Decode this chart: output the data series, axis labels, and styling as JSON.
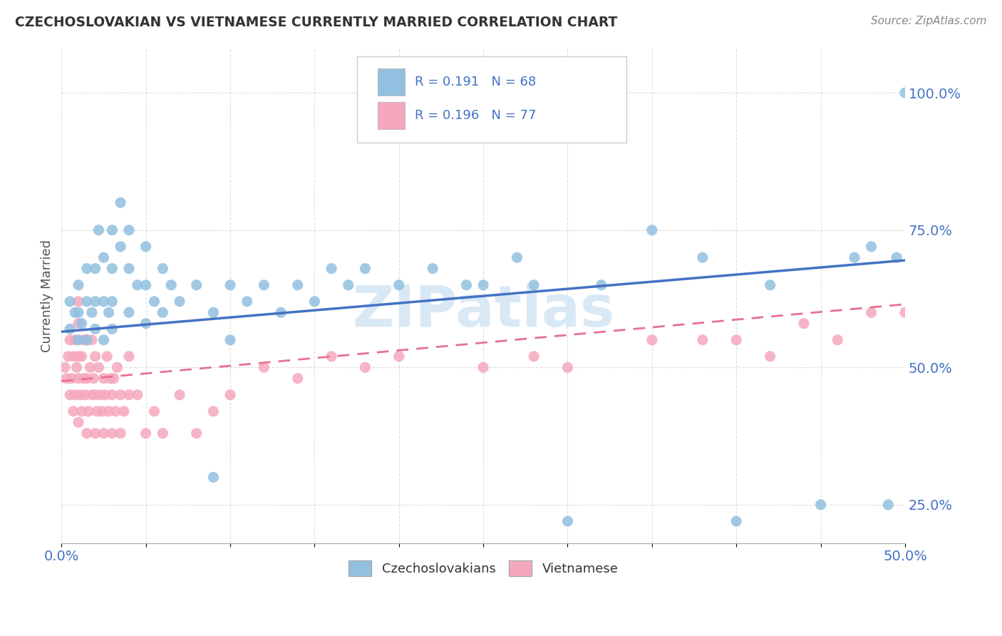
{
  "title": "CZECHOSLOVAKIAN VS VIETNAMESE CURRENTLY MARRIED CORRELATION CHART",
  "source": "Source: ZipAtlas.com",
  "ylabel": "Currently Married",
  "xlim": [
    0.0,
    0.5
  ],
  "ylim": [
    0.18,
    1.08
  ],
  "R_czech": 0.191,
  "N_czech": 68,
  "R_viet": 0.196,
  "N_viet": 77,
  "blue_color": "#92C0E0",
  "pink_color": "#F5A8BC",
  "blue_line": "#4472C4",
  "pink_line": "#E87090",
  "legend_text_color": "#4472C4",
  "watermark": "ZIPatlas",
  "watermark_color": "#D8E8F5",
  "grid_color": "#DDDDDD",
  "czech_x": [
    0.005,
    0.005,
    0.008,
    0.01,
    0.01,
    0.01,
    0.012,
    0.015,
    0.015,
    0.015,
    0.018,
    0.02,
    0.02,
    0.02,
    0.022,
    0.025,
    0.025,
    0.025,
    0.028,
    0.03,
    0.03,
    0.03,
    0.03,
    0.035,
    0.035,
    0.04,
    0.04,
    0.04,
    0.045,
    0.05,
    0.05,
    0.05,
    0.055,
    0.06,
    0.06,
    0.065,
    0.07,
    0.08,
    0.09,
    0.09,
    0.1,
    0.1,
    0.11,
    0.12,
    0.13,
    0.14,
    0.15,
    0.16,
    0.17,
    0.18,
    0.2,
    0.22,
    0.24,
    0.25,
    0.27,
    0.28,
    0.3,
    0.32,
    0.35,
    0.38,
    0.4,
    0.42,
    0.45,
    0.47,
    0.48,
    0.49,
    0.495,
    0.5
  ],
  "czech_y": [
    0.57,
    0.62,
    0.6,
    0.55,
    0.6,
    0.65,
    0.58,
    0.55,
    0.62,
    0.68,
    0.6,
    0.57,
    0.62,
    0.68,
    0.75,
    0.55,
    0.62,
    0.7,
    0.6,
    0.57,
    0.62,
    0.68,
    0.75,
    0.72,
    0.8,
    0.6,
    0.68,
    0.75,
    0.65,
    0.58,
    0.65,
    0.72,
    0.62,
    0.6,
    0.68,
    0.65,
    0.62,
    0.65,
    0.3,
    0.6,
    0.55,
    0.65,
    0.62,
    0.65,
    0.6,
    0.65,
    0.62,
    0.68,
    0.65,
    0.68,
    0.65,
    0.68,
    0.65,
    0.65,
    0.7,
    0.65,
    0.22,
    0.65,
    0.75,
    0.7,
    0.22,
    0.65,
    0.25,
    0.7,
    0.72,
    0.25,
    0.7,
    1.0
  ],
  "viet_x": [
    0.002,
    0.003,
    0.004,
    0.005,
    0.005,
    0.006,
    0.007,
    0.007,
    0.008,
    0.008,
    0.009,
    0.01,
    0.01,
    0.01,
    0.01,
    0.01,
    0.011,
    0.012,
    0.012,
    0.013,
    0.013,
    0.014,
    0.015,
    0.015,
    0.015,
    0.016,
    0.017,
    0.018,
    0.018,
    0.019,
    0.02,
    0.02,
    0.02,
    0.021,
    0.022,
    0.023,
    0.024,
    0.025,
    0.025,
    0.026,
    0.027,
    0.028,
    0.029,
    0.03,
    0.03,
    0.031,
    0.032,
    0.033,
    0.035,
    0.035,
    0.037,
    0.04,
    0.04,
    0.045,
    0.05,
    0.055,
    0.06,
    0.07,
    0.08,
    0.09,
    0.1,
    0.12,
    0.14,
    0.16,
    0.18,
    0.2,
    0.25,
    0.28,
    0.3,
    0.35,
    0.38,
    0.4,
    0.42,
    0.44,
    0.46,
    0.48,
    0.5
  ],
  "viet_y": [
    0.5,
    0.48,
    0.52,
    0.45,
    0.55,
    0.48,
    0.42,
    0.52,
    0.45,
    0.55,
    0.5,
    0.4,
    0.48,
    0.52,
    0.58,
    0.62,
    0.45,
    0.42,
    0.52,
    0.48,
    0.55,
    0.45,
    0.38,
    0.48,
    0.55,
    0.42,
    0.5,
    0.45,
    0.55,
    0.48,
    0.38,
    0.45,
    0.52,
    0.42,
    0.5,
    0.45,
    0.42,
    0.38,
    0.48,
    0.45,
    0.52,
    0.42,
    0.48,
    0.38,
    0.45,
    0.48,
    0.42,
    0.5,
    0.38,
    0.45,
    0.42,
    0.45,
    0.52,
    0.45,
    0.38,
    0.42,
    0.38,
    0.45,
    0.38,
    0.42,
    0.45,
    0.5,
    0.48,
    0.52,
    0.5,
    0.52,
    0.5,
    0.52,
    0.5,
    0.55,
    0.55,
    0.55,
    0.52,
    0.58,
    0.55,
    0.6,
    0.6
  ],
  "czech_line_x0": 0.0,
  "czech_line_y0": 0.565,
  "czech_line_x1": 0.5,
  "czech_line_y1": 0.695,
  "viet_line_x0": 0.0,
  "viet_line_y0": 0.475,
  "viet_line_x1": 0.5,
  "viet_line_y1": 0.615
}
